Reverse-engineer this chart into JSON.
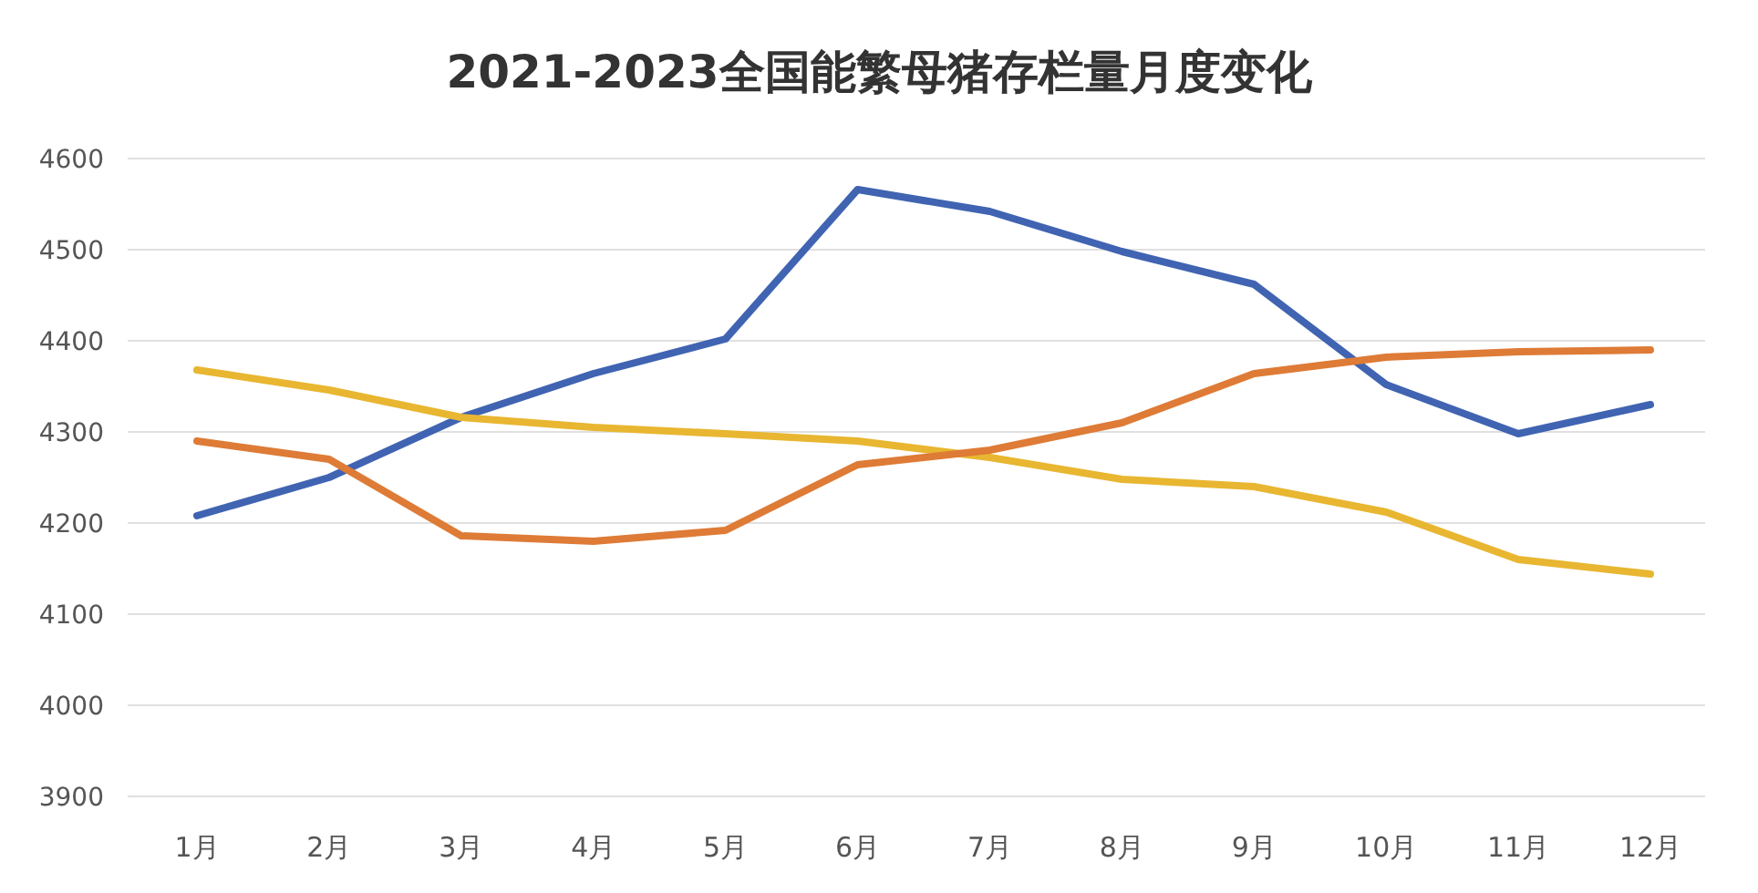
{
  "chart_data": {
    "type": "line",
    "title": "2021-2023全国能繁母猪存栏量月度变化",
    "categories": [
      "1月",
      "2月",
      "3月",
      "4月",
      "5月",
      "6月",
      "7月",
      "8月",
      "9月",
      "10月",
      "11月",
      "12月"
    ],
    "series": [
      {
        "color": "#4064b2",
        "values": [
          4208,
          4250,
          4316,
          4364,
          4402,
          4566,
          4542,
          4498,
          4462,
          4352,
          4298,
          4330
        ]
      },
      {
        "color": "#e8b630",
        "values": [
          4368,
          4346,
          4316,
          4305,
          4298,
          4290,
          4272,
          4248,
          4240,
          4212,
          4160,
          4144
        ]
      },
      {
        "color": "#de7b36",
        "values": [
          4290,
          4270,
          4186,
          4180,
          4192,
          4264,
          4280,
          4310,
          4364,
          4382,
          4388,
          4390
        ]
      }
    ],
    "ylim": [
      3900,
      4600
    ],
    "yticks": [
      3900,
      4000,
      4100,
      4200,
      4300,
      4400,
      4500,
      4600
    ],
    "grid": "y",
    "marker": "none",
    "line_style": "solid"
  }
}
